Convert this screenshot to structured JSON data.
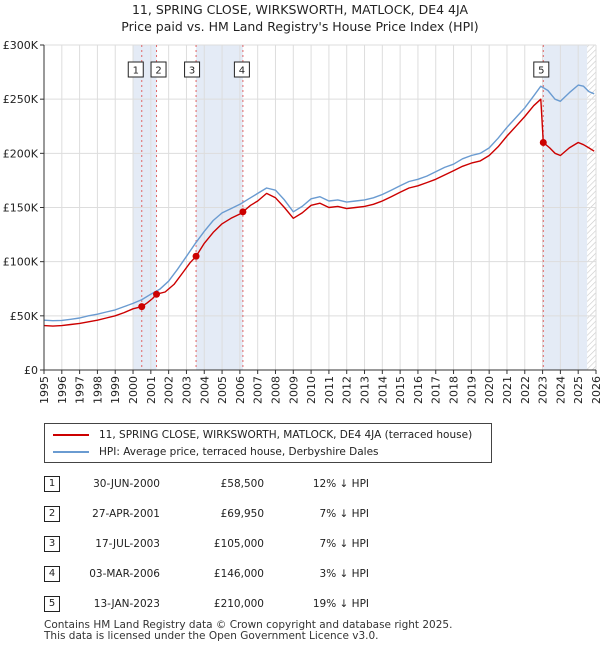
{
  "title_line1": "11, SPRING CLOSE, WIRKSWORTH, MATLOCK, DE4 4JA",
  "title_line2": "Price paid vs. HM Land Registry's House Price Index (HPI)",
  "chart_data": {
    "type": "line",
    "y_tick_labels": [
      "£0",
      "£50K",
      "£100K",
      "£150K",
      "£200K",
      "£250K",
      "£300K"
    ],
    "y_ticks": [
      0,
      50000,
      100000,
      150000,
      200000,
      250000,
      300000
    ],
    "ylim": [
      0,
      300000
    ],
    "xlim": [
      1995,
      2026
    ],
    "x_ticks": [
      "1995",
      "1996",
      "1997",
      "1998",
      "1999",
      "2000",
      "2001",
      "2002",
      "2003",
      "2004",
      "2005",
      "2006",
      "2007",
      "2008",
      "2009",
      "2010",
      "2011",
      "2012",
      "2013",
      "2014",
      "2015",
      "2016",
      "2017",
      "2018",
      "2019",
      "2020",
      "2021",
      "2022",
      "2023",
      "2024",
      "2025",
      "2026"
    ],
    "grid": true,
    "shaded_periods": [
      [
        2000.0,
        2001.32
      ],
      [
        2003.54,
        2006.17
      ],
      [
        2023.04,
        2025.5
      ]
    ],
    "hatched_from": 2025.5,
    "series": [
      {
        "name": "HPI: Average price, terraced house, Derbyshire Dales",
        "color": "#6a9bd1",
        "points": [
          [
            1995.0,
            46000
          ],
          [
            1995.5,
            45500
          ],
          [
            1996.0,
            45800
          ],
          [
            1996.5,
            46800
          ],
          [
            1997.0,
            48000
          ],
          [
            1997.5,
            50000
          ],
          [
            1998.0,
            51500
          ],
          [
            1998.5,
            53500
          ],
          [
            1999.0,
            55500
          ],
          [
            1999.5,
            58500
          ],
          [
            2000.0,
            61500
          ],
          [
            2000.5,
            65000
          ],
          [
            2001.0,
            70000
          ],
          [
            2001.5,
            74500
          ],
          [
            2002.0,
            82000
          ],
          [
            2002.5,
            93000
          ],
          [
            2003.0,
            105000
          ],
          [
            2003.5,
            117000
          ],
          [
            2004.0,
            128000
          ],
          [
            2004.5,
            138000
          ],
          [
            2005.0,
            145000
          ],
          [
            2005.5,
            149000
          ],
          [
            2006.0,
            153000
          ],
          [
            2006.5,
            158000
          ],
          [
            2007.0,
            163000
          ],
          [
            2007.5,
            168000
          ],
          [
            2008.0,
            166000
          ],
          [
            2008.5,
            157000
          ],
          [
            2009.0,
            146000
          ],
          [
            2009.5,
            151000
          ],
          [
            2010.0,
            158000
          ],
          [
            2010.5,
            160000
          ],
          [
            2011.0,
            156000
          ],
          [
            2011.5,
            157000
          ],
          [
            2012.0,
            155000
          ],
          [
            2012.5,
            156000
          ],
          [
            2013.0,
            157000
          ],
          [
            2013.5,
            159000
          ],
          [
            2014.0,
            162000
          ],
          [
            2014.5,
            166000
          ],
          [
            2015.0,
            170000
          ],
          [
            2015.5,
            174000
          ],
          [
            2016.0,
            176000
          ],
          [
            2016.5,
            179000
          ],
          [
            2017.0,
            183000
          ],
          [
            2017.5,
            187000
          ],
          [
            2018.0,
            190000
          ],
          [
            2018.5,
            195000
          ],
          [
            2019.0,
            198000
          ],
          [
            2019.5,
            200000
          ],
          [
            2020.0,
            205000
          ],
          [
            2020.5,
            214000
          ],
          [
            2021.0,
            224000
          ],
          [
            2021.5,
            233000
          ],
          [
            2022.0,
            242000
          ],
          [
            2022.5,
            253000
          ],
          [
            2022.9,
            262000
          ],
          [
            2023.3,
            258000
          ],
          [
            2023.7,
            250000
          ],
          [
            2024.0,
            248000
          ],
          [
            2024.5,
            256000
          ],
          [
            2025.0,
            263000
          ],
          [
            2025.3,
            262000
          ],
          [
            2025.6,
            257000
          ],
          [
            2025.9,
            255000
          ]
        ]
      },
      {
        "name": "11, SPRING CLOSE, WIRKSWORTH, MATLOCK, DE4 4JA (terraced house)",
        "color": "#cc0000",
        "points": [
          [
            1995.0,
            41000
          ],
          [
            1995.5,
            40500
          ],
          [
            1996.0,
            41000
          ],
          [
            1996.5,
            42000
          ],
          [
            1997.0,
            43000
          ],
          [
            1997.5,
            44500
          ],
          [
            1998.0,
            46000
          ],
          [
            1998.5,
            48000
          ],
          [
            1999.0,
            50000
          ],
          [
            1999.5,
            53000
          ],
          [
            2000.0,
            56500
          ],
          [
            2000.49,
            58500
          ],
          [
            2000.8,
            62000
          ],
          [
            2001.1,
            66000
          ],
          [
            2001.32,
            69950
          ],
          [
            2001.8,
            72000
          ],
          [
            2002.3,
            79000
          ],
          [
            2002.8,
            90000
          ],
          [
            2003.2,
            99000
          ],
          [
            2003.54,
            105000
          ],
          [
            2004.0,
            117000
          ],
          [
            2004.5,
            127000
          ],
          [
            2005.0,
            135000
          ],
          [
            2005.5,
            140000
          ],
          [
            2006.0,
            144000
          ],
          [
            2006.17,
            146000
          ],
          [
            2006.6,
            152000
          ],
          [
            2007.0,
            156000
          ],
          [
            2007.5,
            163000
          ],
          [
            2008.0,
            159000
          ],
          [
            2008.5,
            150000
          ],
          [
            2009.0,
            140000
          ],
          [
            2009.5,
            145000
          ],
          [
            2010.0,
            152000
          ],
          [
            2010.5,
            154000
          ],
          [
            2011.0,
            150000
          ],
          [
            2011.5,
            151000
          ],
          [
            2012.0,
            149000
          ],
          [
            2012.5,
            150000
          ],
          [
            2013.0,
            151000
          ],
          [
            2013.5,
            153000
          ],
          [
            2014.0,
            156000
          ],
          [
            2014.5,
            160000
          ],
          [
            2015.0,
            164000
          ],
          [
            2015.5,
            168000
          ],
          [
            2016.0,
            170000
          ],
          [
            2016.5,
            173000
          ],
          [
            2017.0,
            176000
          ],
          [
            2017.5,
            180000
          ],
          [
            2018.0,
            184000
          ],
          [
            2018.5,
            188000
          ],
          [
            2019.0,
            191000
          ],
          [
            2019.5,
            193000
          ],
          [
            2020.0,
            198000
          ],
          [
            2020.5,
            206000
          ],
          [
            2021.0,
            216000
          ],
          [
            2021.5,
            225000
          ],
          [
            2022.0,
            234000
          ],
          [
            2022.5,
            244000
          ],
          [
            2022.9,
            250000
          ],
          [
            2023.04,
            210000
          ],
          [
            2023.4,
            205000
          ],
          [
            2023.7,
            200000
          ],
          [
            2024.0,
            198000
          ],
          [
            2024.5,
            205000
          ],
          [
            2025.0,
            210000
          ],
          [
            2025.3,
            208000
          ],
          [
            2025.6,
            205000
          ],
          [
            2025.9,
            202000
          ]
        ]
      }
    ],
    "transactions": [
      {
        "label": "1",
        "x": 2000.49,
        "y": 58500
      },
      {
        "label": "2",
        "x": 2001.32,
        "y": 69950
      },
      {
        "label": "3",
        "x": 2003.54,
        "y": 105000
      },
      {
        "label": "4",
        "x": 2006.17,
        "y": 146000
      },
      {
        "label": "5",
        "x": 2023.04,
        "y": 210000
      }
    ],
    "marker_color": "#cc0000"
  },
  "legend": {
    "property_label": "11, SPRING CLOSE, WIRKSWORTH, MATLOCK, DE4 4JA (terraced house)",
    "hpi_label": "HPI: Average price, terraced house, Derbyshire Dales",
    "property_color": "#cc0000",
    "hpi_color": "#6a9bd1"
  },
  "transactions_table": [
    {
      "num": "1",
      "date": "30-JUN-2000",
      "price": "£58,500",
      "hpi": "12% ↓ HPI"
    },
    {
      "num": "2",
      "date": "27-APR-2001",
      "price": "£69,950",
      "hpi": "7% ↓ HPI"
    },
    {
      "num": "3",
      "date": "17-JUL-2003",
      "price": "£105,000",
      "hpi": "7% ↓ HPI"
    },
    {
      "num": "4",
      "date": "03-MAR-2006",
      "price": "£146,000",
      "hpi": "3% ↓ HPI"
    },
    {
      "num": "5",
      "date": "13-JAN-2023",
      "price": "£210,000",
      "hpi": "19% ↓ HPI"
    }
  ],
  "footer": {
    "line1": "Contains HM Land Registry data © Crown copyright and database right 2025.",
    "line2": "This data is licensed under the Open Government Licence v3.0."
  }
}
